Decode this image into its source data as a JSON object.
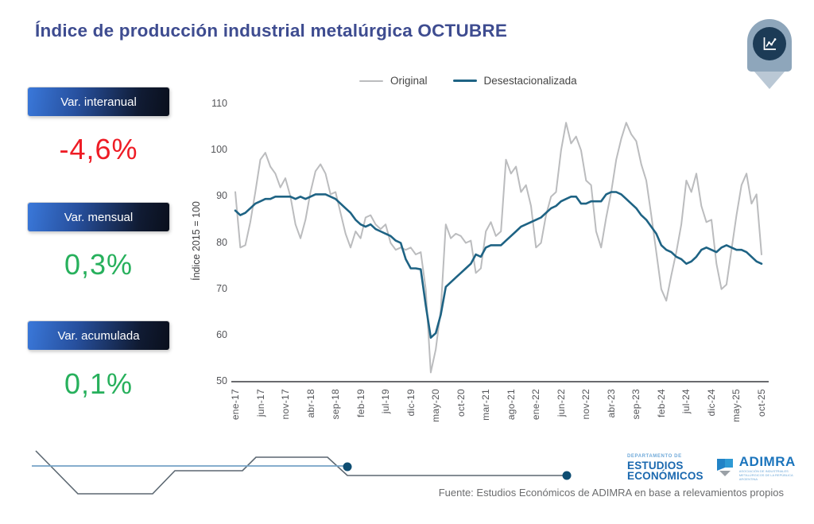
{
  "title": "Índice de producción industrial metalúrgica OCTUBRE",
  "header_icon": "line-chart-pin-icon",
  "kpis": [
    {
      "label": "Var. interanual",
      "value": "-4,6%",
      "color": "#ee1c25"
    },
    {
      "label": "Var. mensual",
      "value": "0,3%",
      "color": "#27b05c"
    },
    {
      "label": "Var. acumulada",
      "value": "0,1%",
      "color": "#27b05c"
    }
  ],
  "chart_data": {
    "type": "line",
    "title": "",
    "xlabel": "",
    "ylabel": "Índice 2015 = 100",
    "ylim": [
      50,
      110
    ],
    "y_ticks": [
      110,
      100,
      90,
      80,
      70,
      60,
      50
    ],
    "grid": false,
    "legend_position": "top",
    "x_range": "ene-17 a oct-25 (mensual, 106 puntos)",
    "x_tick_every": 5,
    "x_tick_labels": [
      "ene-17",
      "jun-17",
      "nov-17",
      "abr-18",
      "sep-18",
      "feb-19",
      "jul-19",
      "dic-19",
      "may-20",
      "oct-20",
      "mar-21",
      "ago-21",
      "ene-22",
      "jun-22",
      "nov-22",
      "abr-23",
      "sep-23",
      "feb-24",
      "jul-24",
      "dic-24",
      "may-25",
      "oct-25"
    ],
    "series": [
      {
        "name": "Original",
        "color": "#bbbcbe",
        "values": [
          91,
          79,
          79.5,
          84.5,
          91,
          98,
          99.5,
          96.5,
          95,
          92,
          94,
          90,
          84,
          81,
          85,
          91,
          95.5,
          97,
          95,
          90.5,
          91,
          86.5,
          82,
          79,
          82.5,
          81,
          85.5,
          86,
          84,
          83,
          84,
          80,
          78.5,
          79,
          78.5,
          79,
          77.5,
          78,
          70,
          52,
          57,
          65.5,
          84,
          81,
          82,
          81.5,
          80,
          80.5,
          73.5,
          74.5,
          82.5,
          84.5,
          81.5,
          82.5,
          98,
          95,
          96.5,
          91,
          92.5,
          88,
          79,
          80,
          86,
          90,
          91,
          100,
          106,
          101.5,
          103,
          100,
          93.5,
          92.5,
          82.5,
          79,
          85.5,
          91,
          98,
          102.5,
          106,
          103.5,
          102,
          97,
          93.5,
          86,
          78,
          70,
          67.5,
          73,
          78,
          84,
          93.5,
          91,
          95,
          88,
          84.5,
          85,
          75.5,
          70,
          71,
          78.5,
          86,
          92.5,
          95,
          88.5,
          90.5,
          77.5
        ]
      },
      {
        "name": "Desestacionalizada",
        "color": "#1e6384",
        "values": [
          87,
          86,
          86.5,
          87.5,
          88.5,
          89,
          89.5,
          89.5,
          90,
          90,
          90,
          90,
          89.5,
          90,
          89.5,
          90,
          90.5,
          90.5,
          90.5,
          90,
          89.5,
          88.5,
          87.5,
          86.5,
          85,
          84,
          83.5,
          84,
          83,
          82.5,
          82,
          81.5,
          80.5,
          80,
          76.5,
          74.5,
          74.5,
          74.3,
          66.5,
          59.5,
          60.5,
          64.5,
          70.5,
          71.5,
          72.5,
          73.5,
          74.5,
          75.5,
          77.5,
          77,
          79,
          79.5,
          79.5,
          79.5,
          80.5,
          81.5,
          82.5,
          83.5,
          84,
          84.5,
          85,
          85.5,
          86.5,
          87.5,
          88,
          89,
          89.5,
          90,
          90,
          88.5,
          88.5,
          89,
          89,
          89,
          90.5,
          91,
          91,
          90.5,
          89.5,
          88.5,
          87.5,
          86,
          85,
          83.5,
          82,
          79.5,
          78.5,
          78,
          77,
          76.5,
          75.5,
          76,
          77,
          78.5,
          79,
          78.5,
          78,
          79,
          79.5,
          79,
          78.5,
          78.5,
          78,
          77,
          76,
          75.5
        ]
      }
    ]
  },
  "footer": {
    "dept_small": "DEPARTAMENTO DE",
    "dept_line1": "ESTUDIOS",
    "dept_line2": "ECONÓMICOS",
    "brand": "ADIMRA",
    "brand_sub": "ASOCIACIÓN DE INDUSTRIALES METALÚRGICOS DE LA REPÚBLICA ARGENTINA",
    "source": "Fuente: Estudios Económicos de ADIMRA en base a relevamientos propios"
  }
}
